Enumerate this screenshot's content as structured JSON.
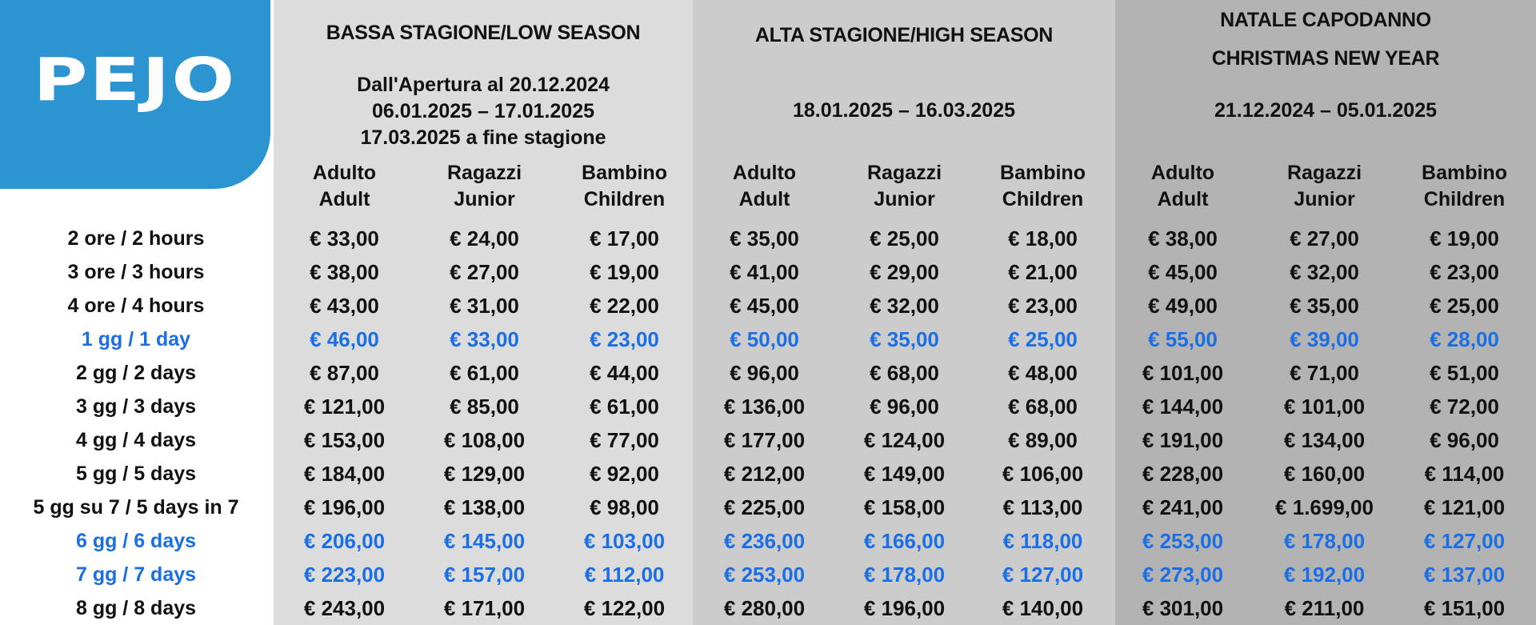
{
  "logo": {
    "text": "PEJO",
    "color": "#2b94d1"
  },
  "highlight_color": "#1a6fe6",
  "seasons": [
    {
      "title": "BASSA STAGIONE/LOW SEASON",
      "dates": [
        "Dall'Apertura al 20.12.2024",
        "06.01.2025 – 17.01.2025",
        "17.03.2025 a fine stagione"
      ],
      "bg": "#dcdcdc"
    },
    {
      "title": "ALTA STAGIONE/HIGH SEASON",
      "dates": [
        "18.01.2025 – 16.03.2025"
      ],
      "bg": "#cccccc"
    },
    {
      "title": "NATALE CAPODANNO",
      "title2": "CHRISTMAS NEW YEAR",
      "dates": [
        "21.12.2024 – 05.01.2025"
      ],
      "bg": "#b3b3b3"
    }
  ],
  "categories": [
    [
      "Adulto",
      "Adult"
    ],
    [
      "Ragazzi",
      "Junior"
    ],
    [
      "Bambino",
      "Children"
    ]
  ],
  "rows": [
    {
      "label": "2 ore / 2 hours",
      "highlight": false,
      "prices": [
        "€ 33,00",
        "€ 24,00",
        "€ 17,00",
        "€ 35,00",
        "€ 25,00",
        "€ 18,00",
        "€ 38,00",
        "€ 27,00",
        "€ 19,00"
      ]
    },
    {
      "label": "3 ore / 3 hours",
      "highlight": false,
      "prices": [
        "€ 38,00",
        "€ 27,00",
        "€ 19,00",
        "€ 41,00",
        "€ 29,00",
        "€ 21,00",
        "€ 45,00",
        "€ 32,00",
        "€ 23,00"
      ]
    },
    {
      "label": "4 ore / 4 hours",
      "highlight": false,
      "prices": [
        "€ 43,00",
        "€ 31,00",
        "€ 22,00",
        "€ 45,00",
        "€ 32,00",
        "€ 23,00",
        "€ 49,00",
        "€ 35,00",
        "€ 25,00"
      ]
    },
    {
      "label": "1 gg / 1 day",
      "highlight": true,
      "prices": [
        "€ 46,00",
        "€ 33,00",
        "€ 23,00",
        "€ 50,00",
        "€ 35,00",
        "€ 25,00",
        "€ 55,00",
        "€ 39,00",
        "€ 28,00"
      ]
    },
    {
      "label": "2 gg / 2 days",
      "highlight": false,
      "prices": [
        "€ 87,00",
        "€ 61,00",
        "€ 44,00",
        "€ 96,00",
        "€ 68,00",
        "€ 48,00",
        "€ 101,00",
        "€ 71,00",
        "€ 51,00"
      ]
    },
    {
      "label": "3 gg / 3 days",
      "highlight": false,
      "prices": [
        "€ 121,00",
        "€ 85,00",
        "€ 61,00",
        "€ 136,00",
        "€ 96,00",
        "€ 68,00",
        "€ 144,00",
        "€ 101,00",
        "€ 72,00"
      ]
    },
    {
      "label": "4 gg / 4 days",
      "highlight": false,
      "prices": [
        "€ 153,00",
        "€ 108,00",
        "€ 77,00",
        "€ 177,00",
        "€ 124,00",
        "€ 89,00",
        "€ 191,00",
        "€ 134,00",
        "€ 96,00"
      ]
    },
    {
      "label": "5 gg / 5 days",
      "highlight": false,
      "prices": [
        "€ 184,00",
        "€ 129,00",
        "€ 92,00",
        "€ 212,00",
        "€ 149,00",
        "€ 106,00",
        "€ 228,00",
        "€ 160,00",
        "€ 114,00"
      ]
    },
    {
      "label": "5 gg su 7 / 5 days in 7",
      "highlight": false,
      "prices": [
        "€ 196,00",
        "€ 138,00",
        "€ 98,00",
        "€ 225,00",
        "€ 158,00",
        "€ 113,00",
        "€ 241,00",
        "€ 1.699,00",
        "€ 121,00"
      ]
    },
    {
      "label": "6 gg / 6 days",
      "highlight": true,
      "prices": [
        "€ 206,00",
        "€ 145,00",
        "€ 103,00",
        "€ 236,00",
        "€ 166,00",
        "€ 118,00",
        "€ 253,00",
        "€ 178,00",
        "€ 127,00"
      ]
    },
    {
      "label": "7 gg / 7 days",
      "highlight": true,
      "prices": [
        "€ 223,00",
        "€ 157,00",
        "€ 112,00",
        "€ 253,00",
        "€ 178,00",
        "€ 127,00",
        "€ 273,00",
        "€ 192,00",
        "€ 137,00"
      ]
    },
    {
      "label": "8 gg / 8 days",
      "highlight": false,
      "prices": [
        "€ 243,00",
        "€ 171,00",
        "€ 122,00",
        "€ 280,00",
        "€ 196,00",
        "€ 140,00",
        "€ 301,00",
        "€ 211,00",
        "€ 151,00"
      ]
    }
  ]
}
